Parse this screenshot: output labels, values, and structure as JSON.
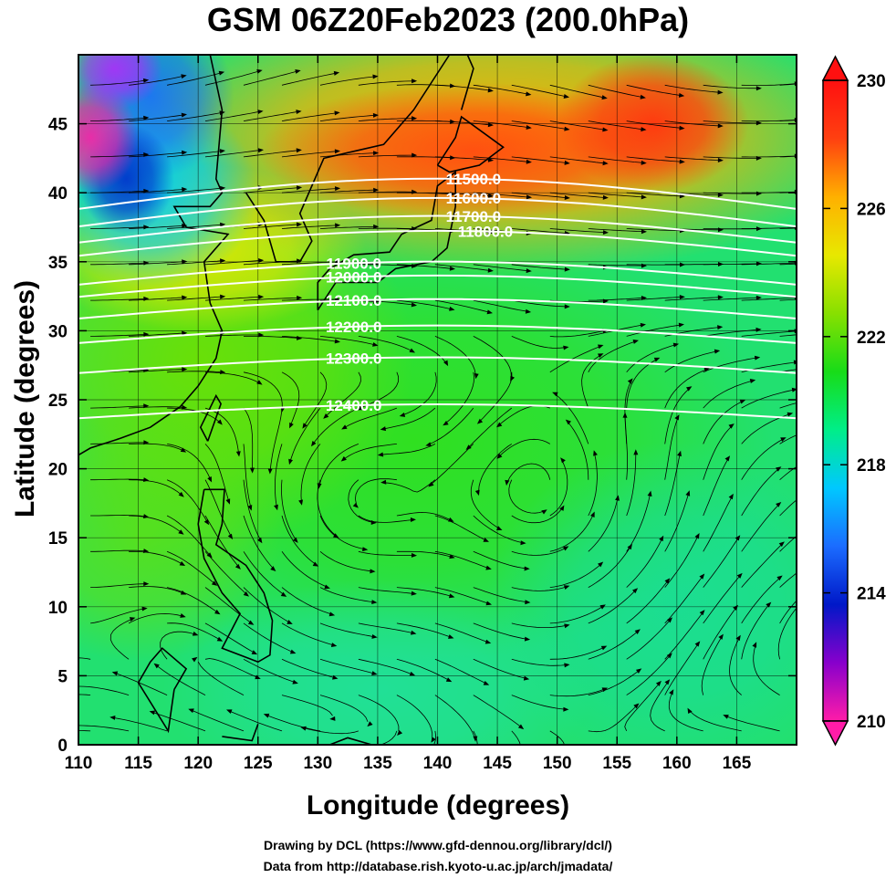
{
  "title": "GSM 06Z20Feb2023 (200.0hPa)",
  "xlabel": "Longitude (degrees)",
  "ylabel": "Latitude  (degrees)",
  "credits": [
    "Drawing by DCL (https://www.gfd-dennou.org/library/dcl/)",
    "Data from http://database.rish.kyoto-u.ac.jp/arch/jmadata/"
  ],
  "map": {
    "lon_range": [
      110,
      170
    ],
    "lat_range": [
      0,
      50
    ],
    "lon_ticks": [
      110,
      115,
      120,
      125,
      130,
      135,
      140,
      145,
      150,
      155,
      160,
      165
    ],
    "lat_ticks": [
      0,
      5,
      10,
      15,
      20,
      25,
      30,
      35,
      40,
      45
    ],
    "grid": true
  },
  "colorbar": {
    "min": 210,
    "max": 230,
    "labels": [
      "210",
      "214",
      "218",
      "222",
      "226",
      "230"
    ],
    "label_values": [
      210,
      214,
      218,
      222,
      226,
      230
    ],
    "colors": [
      "#ff1ca8",
      "#8800cc",
      "#0018c8",
      "#1b6cff",
      "#00c8ff",
      "#00ee88",
      "#18dc18",
      "#88e000",
      "#e8e800",
      "#ffb000",
      "#ff4010",
      "#ff1010"
    ]
  },
  "contours": [
    {
      "label": "11500.0",
      "lon": 143,
      "lat": 41.0
    },
    {
      "label": "11600.0",
      "lon": 143,
      "lat": 39.6
    },
    {
      "label": "11700.0",
      "lon": 143,
      "lat": 38.3
    },
    {
      "label": "11800.0",
      "lon": 144,
      "lat": 37.2
    },
    {
      "label": "11900.0",
      "lon": 133,
      "lat": 34.9
    },
    {
      "label": "12000.0",
      "lon": 133,
      "lat": 33.9
    },
    {
      "label": "12100.0",
      "lon": 133,
      "lat": 32.2
    },
    {
      "label": "12200.0",
      "lon": 133,
      "lat": 30.3
    },
    {
      "label": "12300.0",
      "lon": 133,
      "lat": 28.0
    },
    {
      "label": "12400.0",
      "lon": 133,
      "lat": 24.6
    }
  ]
}
